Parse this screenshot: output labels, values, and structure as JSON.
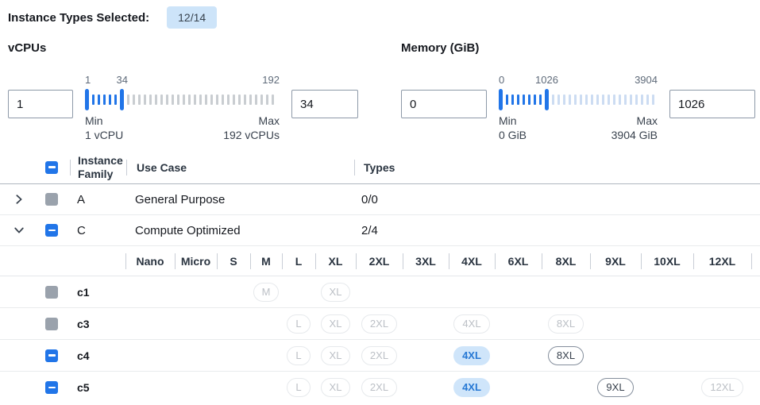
{
  "top": {
    "label": "Instance Types Selected:",
    "badge": "12/14"
  },
  "colors": {
    "accent_blue": "#2175e8",
    "badge_bg": "#cde4f9",
    "selected_pill_bg": "#cfe5fa",
    "selected_pill_text": "#2678d4",
    "disabled_checkbox_gray": "#9aa2ac",
    "vcpu_out_of_range_tick": "#c9cdd1",
    "memory_out_of_range_tick": "#ccdcf2"
  },
  "filters": {
    "vcpus": {
      "title": "vCPUs",
      "lower_value": "1",
      "upper_value": "34",
      "scale_labels": [
        "1",
        "34",
        "192"
      ],
      "min_label": "Min",
      "min_sub": "1 vCPU",
      "max_label": "Max",
      "max_sub": "192 vCPUs",
      "ticks_in_range": 5,
      "ticks_after": 27,
      "out_tick_color": "#c9cdd1"
    },
    "memory": {
      "title": "Memory (GiB)",
      "lower_value": "0",
      "upper_value": "1026",
      "scale_labels": [
        "0",
        "1026",
        "3904"
      ],
      "min_label": "Min",
      "min_sub": "0 GiB",
      "max_label": "Max",
      "max_sub": "3904 GiB",
      "ticks_in_range": 7,
      "ticks_after": 19,
      "out_tick_color": "#ccdcf2"
    }
  },
  "table": {
    "header_checkbox": "indeterminate",
    "columns": {
      "family": "Instance Family",
      "use_case": "Use Case",
      "types": "Types"
    },
    "family_rows": [
      {
        "name": "A",
        "use_case": "General Purpose",
        "types": "0/0",
        "expanded": false,
        "checkbox": "disabled"
      },
      {
        "name": "C",
        "use_case": "Compute Optimized",
        "types": "2/4",
        "expanded": true,
        "checkbox": "indeterminate"
      }
    ],
    "size_columns": [
      "Nano",
      "Micro",
      "S",
      "M",
      "L",
      "XL",
      "2XL",
      "3XL",
      "4XL",
      "6XL",
      "8XL",
      "9XL",
      "10XL",
      "12XL"
    ],
    "instance_rows": [
      {
        "name": "c1",
        "checkbox": "disabled",
        "pills": [
          {
            "size": "M",
            "state": "disabled"
          },
          {
            "size": "XL",
            "state": "disabled"
          }
        ]
      },
      {
        "name": "c3",
        "checkbox": "disabled",
        "pills": [
          {
            "size": "L",
            "state": "disabled"
          },
          {
            "size": "XL",
            "state": "disabled"
          },
          {
            "size": "2XL",
            "state": "disabled"
          },
          {
            "size": "4XL",
            "state": "disabled"
          },
          {
            "size": "8XL",
            "state": "disabled"
          }
        ]
      },
      {
        "name": "c4",
        "checkbox": "indeterminate",
        "pills": [
          {
            "size": "L",
            "state": "disabled"
          },
          {
            "size": "XL",
            "state": "disabled"
          },
          {
            "size": "2XL",
            "state": "disabled"
          },
          {
            "size": "4XL",
            "state": "selected"
          },
          {
            "size": "8XL",
            "state": "available"
          }
        ]
      },
      {
        "name": "c5",
        "checkbox": "indeterminate",
        "pills": [
          {
            "size": "L",
            "state": "disabled"
          },
          {
            "size": "XL",
            "state": "disabled"
          },
          {
            "size": "2XL",
            "state": "disabled"
          },
          {
            "size": "4XL",
            "state": "selected"
          },
          {
            "size": "9XL",
            "state": "available"
          },
          {
            "size": "12XL",
            "state": "disabled"
          }
        ]
      }
    ]
  }
}
